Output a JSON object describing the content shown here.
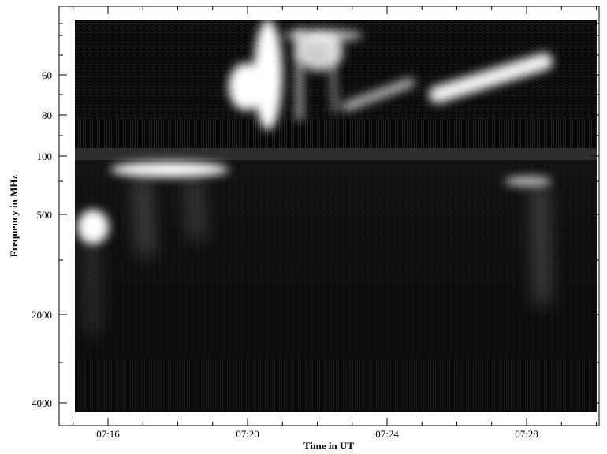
{
  "chart_data": {
    "type": "spectrogram",
    "x_label": "Time in UT",
    "y_label": "Frequency in MHz",
    "xticks": [
      "07:16",
      "07:20",
      "07:24",
      "07:28"
    ],
    "yticks": [
      60,
      80,
      100,
      500,
      2000,
      4000
    ]
  }
}
